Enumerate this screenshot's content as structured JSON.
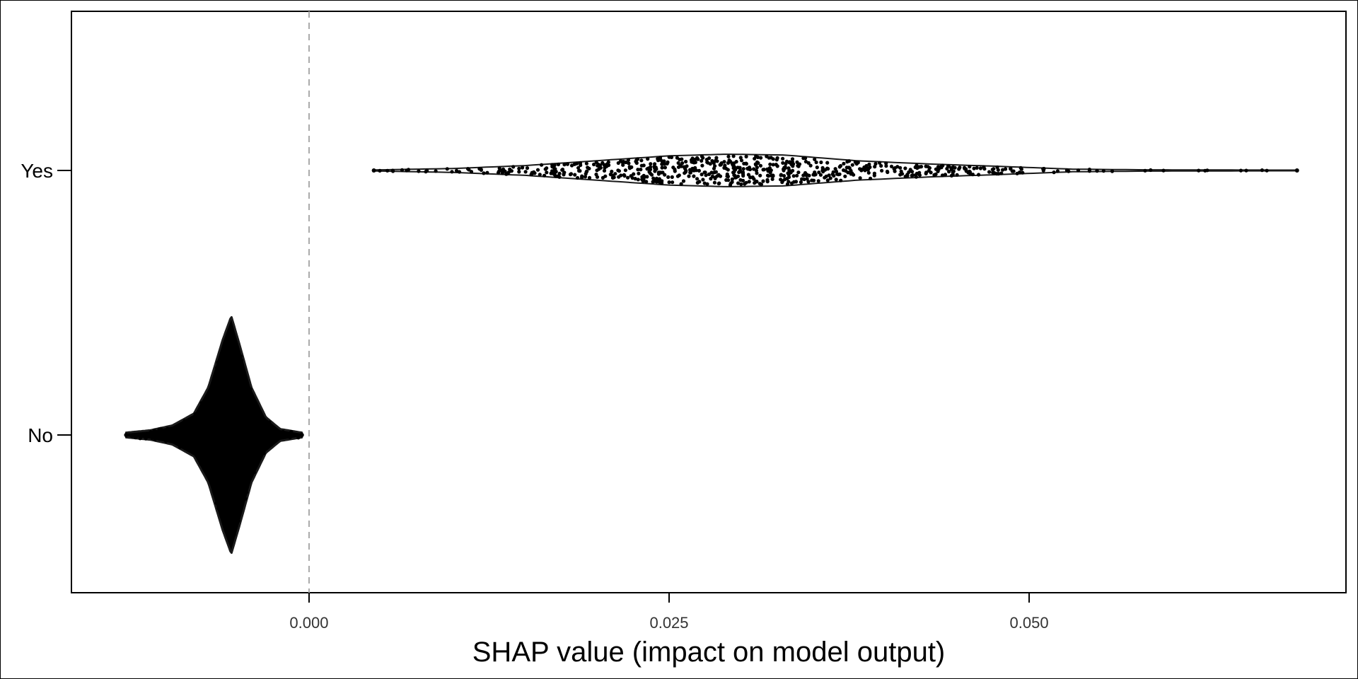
{
  "chart_data": {
    "type": "scatter",
    "subtype": "beeswarm-violin",
    "title": "",
    "xlabel": "SHAP value (impact on model output)",
    "ylabel": "",
    "xlim": [
      -0.0165,
      0.072
    ],
    "x_ticks": [
      0.0,
      0.025,
      0.05
    ],
    "x_tick_labels": [
      "0.000",
      "0.025",
      "0.050"
    ],
    "categories": [
      "Yes",
      "No"
    ],
    "reference_line": {
      "x": 0.0,
      "style": "dashed",
      "color": "#aaaaaa"
    },
    "grid": false,
    "legend": "none",
    "point_color": "#000000",
    "series": [
      {
        "name": "Yes",
        "min": 0.0045,
        "max": 0.0686,
        "peak": 0.029,
        "profile": [
          [
            0.0045,
            0.03
          ],
          [
            0.01,
            0.12
          ],
          [
            0.015,
            0.3
          ],
          [
            0.02,
            0.6
          ],
          [
            0.025,
            0.9
          ],
          [
            0.029,
            1.0
          ],
          [
            0.033,
            0.95
          ],
          [
            0.038,
            0.6
          ],
          [
            0.043,
            0.4
          ],
          [
            0.048,
            0.25
          ],
          [
            0.053,
            0.08
          ],
          [
            0.058,
            0.04
          ],
          [
            0.0686,
            0.02
          ]
        ]
      },
      {
        "name": "No",
        "min": -0.0127,
        "max": -0.0005,
        "peak": -0.0054,
        "profile": [
          [
            -0.0127,
            0.02
          ],
          [
            -0.011,
            0.04
          ],
          [
            -0.0095,
            0.08
          ],
          [
            -0.008,
            0.18
          ],
          [
            -0.007,
            0.4
          ],
          [
            -0.006,
            0.8
          ],
          [
            -0.0054,
            1.0
          ],
          [
            -0.0048,
            0.75
          ],
          [
            -0.004,
            0.4
          ],
          [
            -0.003,
            0.15
          ],
          [
            -0.002,
            0.05
          ],
          [
            -0.0005,
            0.02
          ]
        ]
      }
    ]
  }
}
